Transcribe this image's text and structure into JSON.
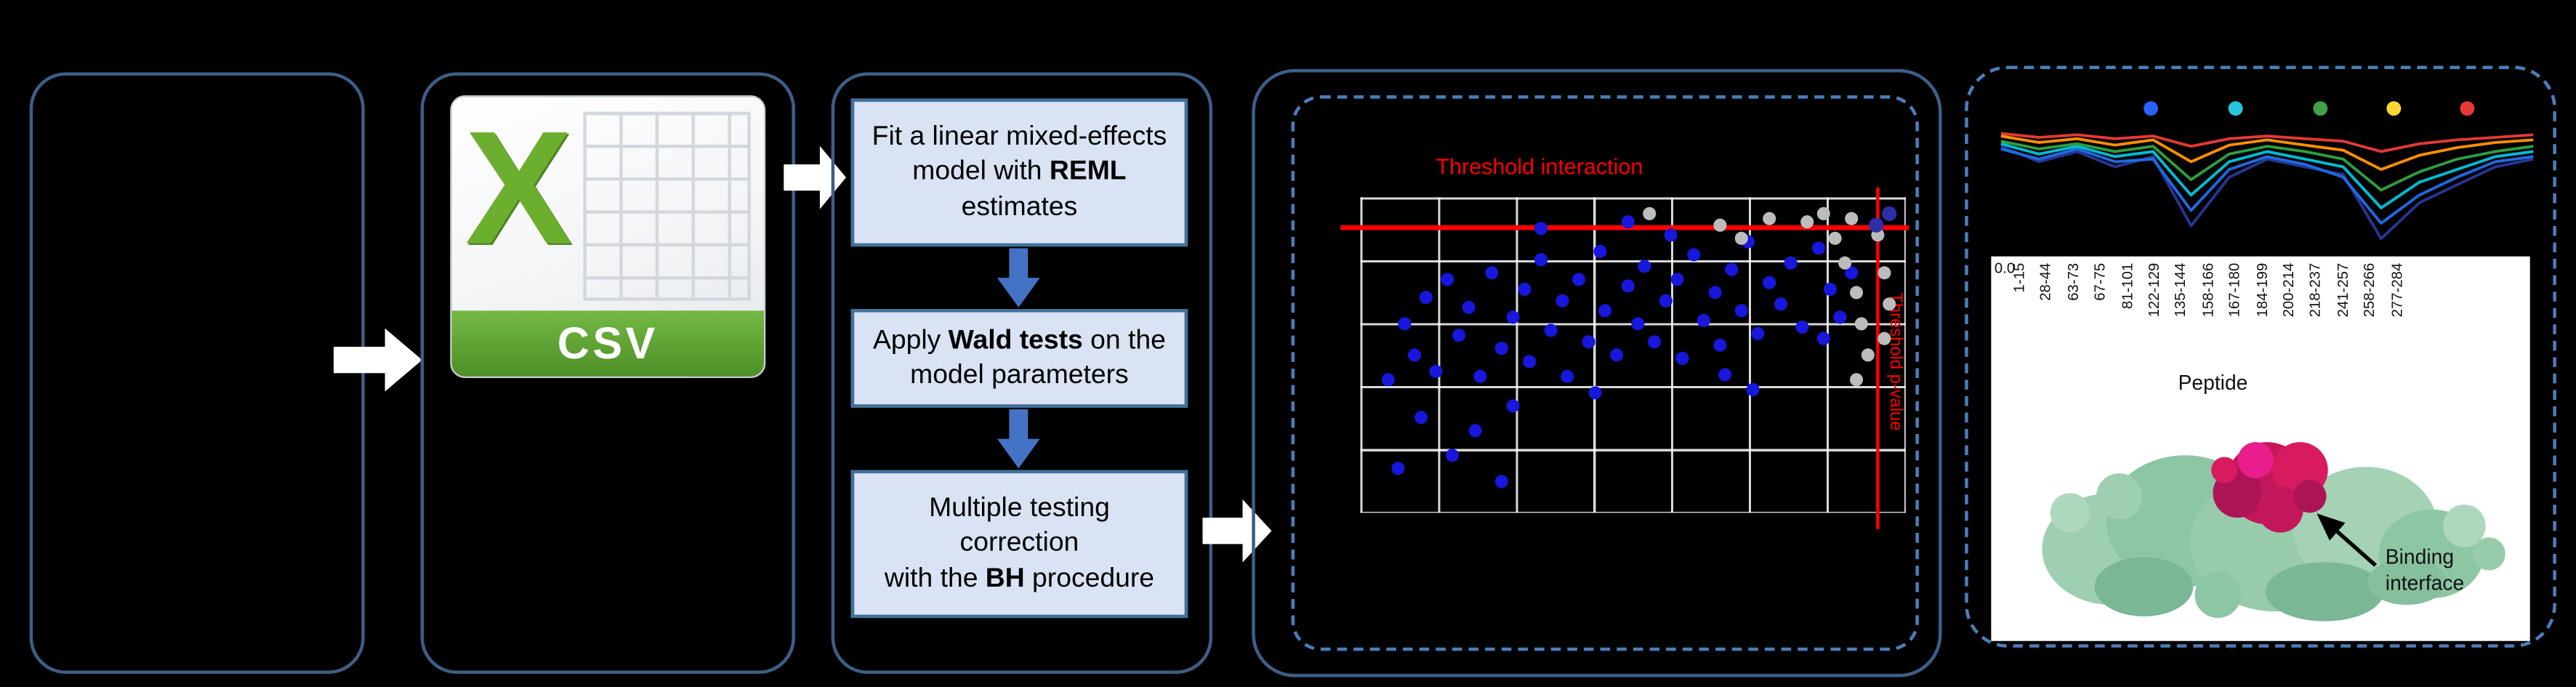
{
  "csv_icon": {
    "letter": "X",
    "label": "CSV"
  },
  "steps": [
    {
      "pre": "Fit a linear mixed-effects model with ",
      "bold": "REML",
      "post": " estimates"
    },
    {
      "pre": "Apply ",
      "bold": "Wald tests",
      "post": " on the model parameters"
    },
    {
      "pre": "Multiple testing correction\nwith the ",
      "bold": "BH",
      "post": " procedure"
    }
  ],
  "labels": {
    "binding_interface": "Binding interface"
  },
  "chart_data": [
    {
      "type": "scatter",
      "title": "Threshold interaction",
      "right_axis_label": "Threshold p-value",
      "grid": true,
      "colors": {
        "blue": "#1717dd",
        "gray": "#bcbcbc",
        "dark": "#2e2ea6",
        "threshold": "#ff0000"
      },
      "threshold_h_pct": 9,
      "threshold_v_pct": 94.5,
      "points_blue": [
        [
          5,
          58
        ],
        [
          8,
          40
        ],
        [
          10,
          50
        ],
        [
          12,
          32
        ],
        [
          14,
          55
        ],
        [
          16,
          26
        ],
        [
          18,
          44
        ],
        [
          20,
          35
        ],
        [
          22,
          57
        ],
        [
          24,
          24
        ],
        [
          26,
          48
        ],
        [
          28,
          38
        ],
        [
          30,
          29
        ],
        [
          31,
          52
        ],
        [
          33,
          20
        ],
        [
          35,
          42
        ],
        [
          37,
          33
        ],
        [
          38,
          57
        ],
        [
          40,
          26
        ],
        [
          42,
          46
        ],
        [
          44,
          17
        ],
        [
          45,
          36
        ],
        [
          47,
          50
        ],
        [
          49,
          28
        ],
        [
          51,
          40
        ],
        [
          52,
          22
        ],
        [
          54,
          46
        ],
        [
          56,
          33
        ],
        [
          58,
          26
        ],
        [
          59,
          51
        ],
        [
          61,
          18
        ],
        [
          63,
          39
        ],
        [
          65,
          30
        ],
        [
          66,
          47
        ],
        [
          68,
          23
        ],
        [
          70,
          36
        ],
        [
          71,
          14
        ],
        [
          73,
          43
        ],
        [
          75,
          27
        ],
        [
          77,
          34
        ],
        [
          79,
          21
        ],
        [
          81,
          41
        ],
        [
          57,
          12
        ],
        [
          49,
          8
        ],
        [
          33,
          10
        ],
        [
          43,
          62
        ],
        [
          28,
          66
        ],
        [
          21,
          74
        ],
        [
          17,
          82
        ],
        [
          26,
          90
        ],
        [
          11,
          70
        ],
        [
          7,
          86
        ],
        [
          67,
          56
        ],
        [
          72,
          61
        ],
        [
          84,
          16
        ],
        [
          86,
          29
        ],
        [
          88,
          38
        ],
        [
          90,
          24
        ],
        [
          85,
          45
        ]
      ],
      "points_gray": [
        [
          82,
          8
        ],
        [
          85,
          5
        ],
        [
          87,
          13
        ],
        [
          89,
          21
        ],
        [
          91,
          30
        ],
        [
          92,
          40
        ],
        [
          93,
          50
        ],
        [
          91,
          58
        ],
        [
          95,
          12
        ],
        [
          96,
          24
        ],
        [
          90,
          7
        ],
        [
          66,
          9
        ],
        [
          70,
          13
        ],
        [
          75,
          7
        ],
        [
          53,
          5
        ],
        [
          97,
          34
        ],
        [
          96,
          45
        ]
      ],
      "points_dark": [
        [
          94.5,
          9
        ],
        [
          97,
          5
        ]
      ]
    },
    {
      "type": "line",
      "categories": [
        "1-15",
        "28-44",
        "63-73",
        "67-75",
        "81-101",
        "122-129",
        "135-144",
        "158-166",
        "167-180",
        "184-199",
        "200-214",
        "218-237",
        "241-257",
        "258-266",
        "277-284"
      ],
      "series": [
        {
          "name": "navy",
          "color": "#283593",
          "values": [
            0.82,
            0.7,
            0.78,
            0.66,
            0.74,
            0.2,
            0.58,
            0.72,
            0.66,
            0.6,
            0.1,
            0.38,
            0.52,
            0.66,
            0.72
          ]
        },
        {
          "name": "blue",
          "color": "#1e6ae1",
          "values": [
            0.8,
            0.72,
            0.8,
            0.7,
            0.72,
            0.32,
            0.64,
            0.74,
            0.68,
            0.58,
            0.22,
            0.44,
            0.58,
            0.7,
            0.74
          ]
        },
        {
          "name": "cyan",
          "color": "#00bcd4",
          "values": [
            0.84,
            0.76,
            0.82,
            0.74,
            0.78,
            0.44,
            0.7,
            0.78,
            0.72,
            0.66,
            0.34,
            0.54,
            0.64,
            0.74,
            0.78
          ]
        },
        {
          "name": "green",
          "color": "#2e9e3f",
          "values": [
            0.86,
            0.8,
            0.84,
            0.78,
            0.82,
            0.56,
            0.76,
            0.82,
            0.78,
            0.72,
            0.48,
            0.62,
            0.72,
            0.78,
            0.82
          ]
        },
        {
          "name": "orange",
          "color": "#ff8f00",
          "values": [
            0.9,
            0.85,
            0.88,
            0.83,
            0.87,
            0.7,
            0.83,
            0.87,
            0.83,
            0.79,
            0.64,
            0.75,
            0.81,
            0.85,
            0.87
          ]
        },
        {
          "name": "red",
          "color": "#e53935",
          "values": [
            0.92,
            0.89,
            0.91,
            0.88,
            0.9,
            0.82,
            0.88,
            0.9,
            0.88,
            0.86,
            0.78,
            0.84,
            0.87,
            0.89,
            0.91
          ]
        }
      ],
      "legend_dots": [
        {
          "color": "#2962ff",
          "x_pct": 30
        },
        {
          "color": "#26c6da",
          "x_pct": 45
        },
        {
          "color": "#43a047",
          "x_pct": 60
        },
        {
          "color": "#fdd835",
          "x_pct": 73
        },
        {
          "color": "#e53935",
          "x_pct": 86
        }
      ],
      "xlabel": "Peptide",
      "first_y_tick": "0.0",
      "legend_position": "top"
    }
  ]
}
